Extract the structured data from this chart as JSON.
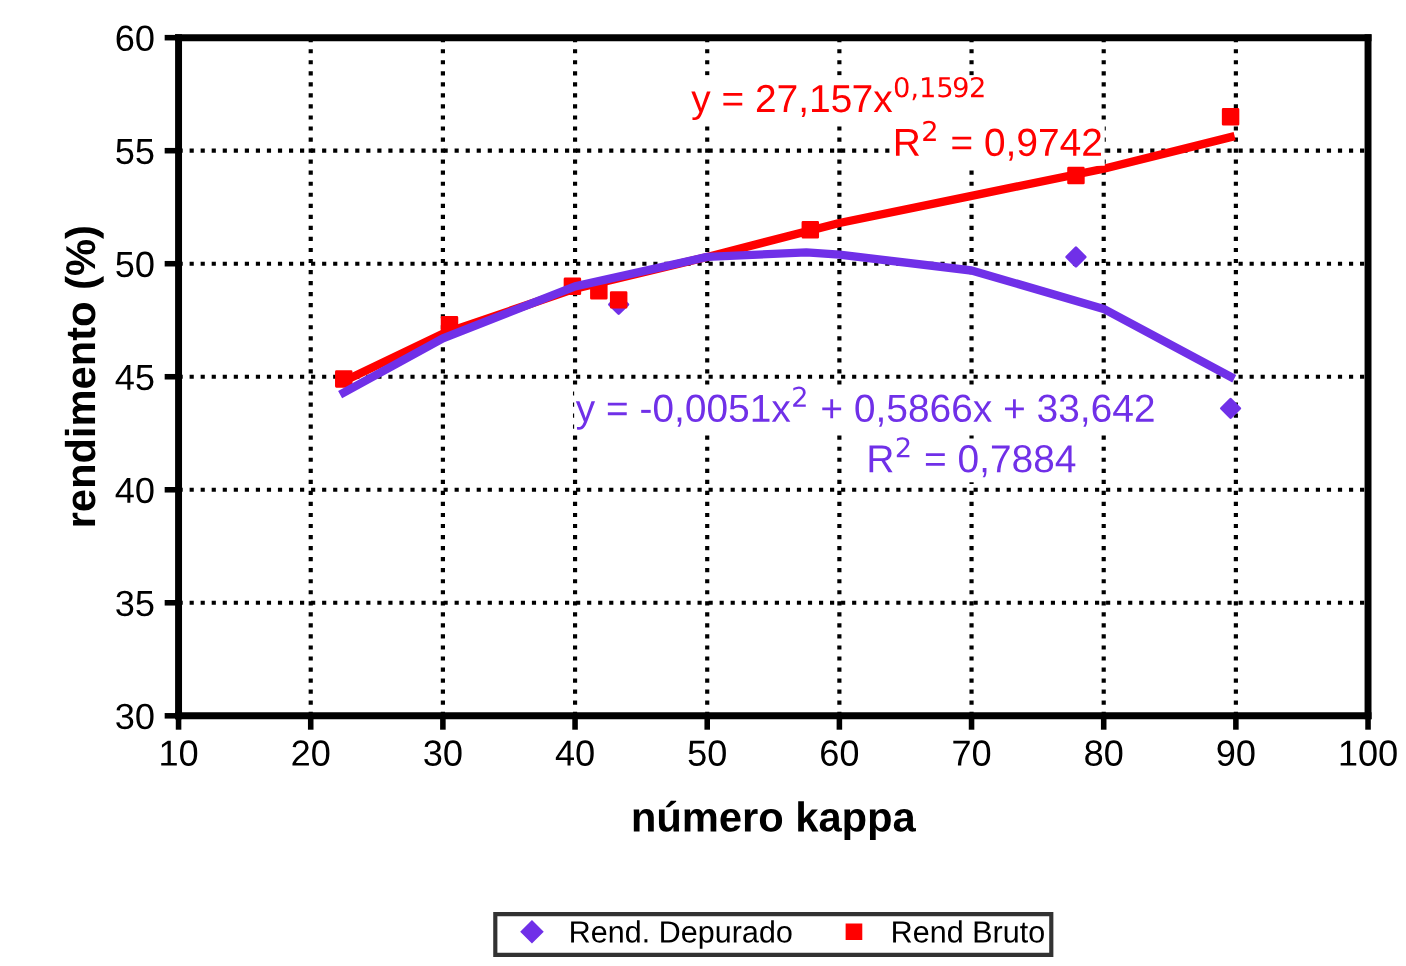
{
  "chart_data": {
    "type": "scatter",
    "xlabel": "número kappa",
    "ylabel": "rendimento (%)",
    "xlim": [
      10,
      100
    ],
    "xticks": [
      10,
      20,
      30,
      40,
      50,
      60,
      70,
      80,
      90,
      100
    ],
    "ylim": [
      30,
      60
    ],
    "yticks": [
      30,
      35,
      40,
      45,
      50,
      55,
      60
    ],
    "grid": true,
    "legend": "bottom",
    "series": [
      {
        "name": "Rend. Depurado",
        "color": "#7030e8",
        "marker": "diamond",
        "x": [
          43.3,
          77.9,
          89.6
        ],
        "values": [
          48.2,
          50.3,
          43.6
        ]
      },
      {
        "name": "Rend Bruto",
        "color": "#ff0000",
        "marker": "square",
        "x": [
          22.5,
          30.5,
          39.8,
          41.8,
          43.3,
          57.8,
          77.9,
          89.6
        ],
        "values": [
          44.9,
          47.3,
          49.0,
          48.8,
          48.4,
          51.5,
          53.9,
          56.5
        ]
      },
      {
        "type": "line",
        "color": "#ff0000",
        "x": [
          22.5,
          30,
          40,
          50,
          60,
          70,
          80,
          89.6
        ],
        "values": [
          44.8,
          46.9,
          48.9,
          50.3,
          51.8,
          53.0,
          54.2,
          55.6
        ]
      },
      {
        "type": "line",
        "color": "#7030e8",
        "x": [
          22.5,
          30,
          40,
          50,
          57.5,
          60,
          70,
          80,
          89.6
        ],
        "values": [
          44.3,
          46.7,
          49.0,
          50.3,
          50.5,
          50.4,
          49.7,
          48.0,
          45.0
        ]
      }
    ],
    "annotations": [
      "y = 27,157x$^{0,1592}$",
      "R$^{2}$ = 0,9742",
      "y = -0,0051x$^{2}$ + 0,5866x + 33,642",
      "R$^{2}$ = 0,7884"
    ]
  }
}
